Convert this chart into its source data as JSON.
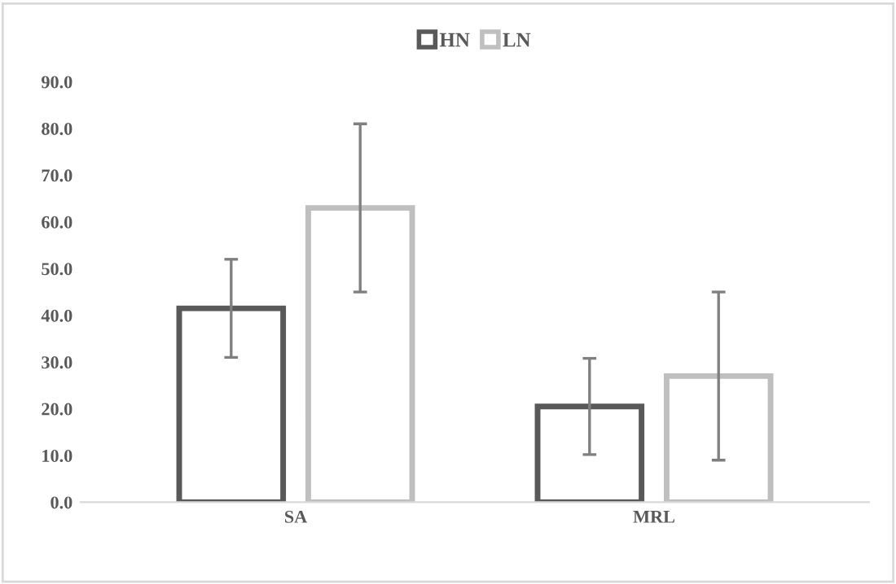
{
  "chart_data": {
    "type": "bar",
    "categories": [
      "SA",
      "MRL"
    ],
    "series": [
      {
        "name": "HN",
        "color": "#595959",
        "values": [
          41.5,
          20.5
        ],
        "errors": [
          10.5,
          10.3
        ]
      },
      {
        "name": "LN",
        "color": "#bfbfbf",
        "values": [
          63.0,
          27.0
        ],
        "errors": [
          18.0,
          18.0
        ]
      }
    ],
    "ylim": [
      0,
      90
    ],
    "yticks": [
      {
        "value": 0,
        "label": "0.0"
      },
      {
        "value": 10,
        "label": "10.0"
      },
      {
        "value": 20,
        "label": "20.0"
      },
      {
        "value": 30,
        "label": "30.0"
      },
      {
        "value": 40,
        "label": "40.0"
      },
      {
        "value": 50,
        "label": "50.0"
      },
      {
        "value": 60,
        "label": "60.0"
      },
      {
        "value": 70,
        "label": "70.0"
      },
      {
        "value": 80,
        "label": "80.0"
      },
      {
        "value": 90,
        "label": "90.0"
      }
    ],
    "grid": false,
    "legend": "top"
  }
}
